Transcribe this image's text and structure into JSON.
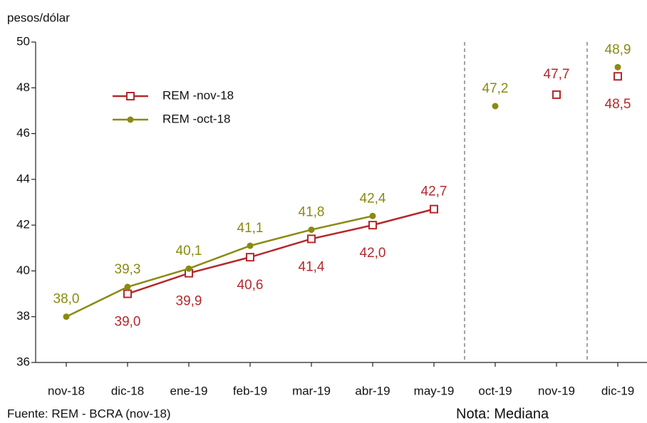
{
  "chart_data": {
    "type": "line",
    "y_label": "pesos/dólar",
    "source": "Fuente: REM - BCRA (nov-18)",
    "note": "Nota: Mediana",
    "categories": [
      "nov-18",
      "dic-18",
      "ene-19",
      "feb-19",
      "mar-19",
      "abr-19",
      "may-19",
      "oct-19",
      "nov-19",
      "dic-19"
    ],
    "series": [
      {
        "name": "REM -nov-18",
        "color": "#b5282c",
        "marker": "square",
        "values": [
          null,
          39.0,
          39.9,
          40.6,
          41.4,
          42.0,
          42.7,
          null,
          47.7,
          48.5
        ],
        "value_labels": [
          null,
          "39,0",
          "39,9",
          "40,6",
          "41,4",
          "42,0",
          "42,7",
          null,
          "47,7",
          "48,5"
        ]
      },
      {
        "name": "REM -oct-18",
        "color": "#8a8a12",
        "marker": "circle",
        "values": [
          38.0,
          39.3,
          40.1,
          41.1,
          41.8,
          42.4,
          null,
          47.2,
          null,
          48.9
        ],
        "value_labels": [
          "38,0",
          "39,3",
          "40,1",
          "41,1",
          "41,8",
          "42,4",
          null,
          "47,2",
          null,
          "48,9"
        ]
      }
    ],
    "ylim": [
      36,
      50
    ],
    "yticks": [
      36,
      38,
      40,
      42,
      44,
      46,
      48,
      50
    ],
    "grid": false
  }
}
